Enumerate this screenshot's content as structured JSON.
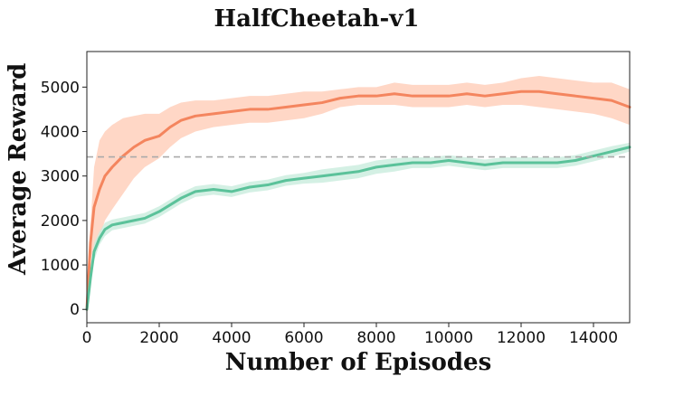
{
  "chart_data": {
    "type": "line",
    "title": "HalfCheetah-v1",
    "xlabel": "Number of Episodes",
    "ylabel": "Average Reward",
    "xlim": [
      0,
      15000
    ],
    "ylim": [
      -300,
      5800
    ],
    "xticks": [
      0,
      2000,
      4000,
      6000,
      8000,
      10000,
      12000,
      14000
    ],
    "yticks": [
      0,
      1000,
      2000,
      3000,
      4000,
      5000
    ],
    "xtick_labels": [
      "0",
      "2000",
      "4000",
      "6000",
      "8000",
      "10000",
      "12000",
      "14000"
    ],
    "ytick_labels": [
      "0",
      "1000",
      "2000",
      "3000",
      "4000",
      "5000"
    ],
    "grid": false,
    "reference_line": {
      "y": 3430,
      "style": "dashed",
      "color": "#aaaaaa"
    },
    "series": [
      {
        "color": "#f4855e",
        "band_color": "#ffcdb8",
        "x": [
          0,
          100,
          200,
          350,
          500,
          700,
          1000,
          1300,
          1600,
          2000,
          2300,
          2600,
          3000,
          3500,
          4000,
          4500,
          5000,
          5500,
          6000,
          6500,
          7000,
          7500,
          8000,
          8500,
          9000,
          9500,
          10000,
          10500,
          11000,
          11500,
          12000,
          12500,
          13000,
          13500,
          14000,
          14500,
          15000
        ],
        "values": [
          0,
          1500,
          2300,
          2700,
          3000,
          3200,
          3450,
          3650,
          3800,
          3900,
          4100,
          4250,
          4350,
          4400,
          4450,
          4500,
          4500,
          4550,
          4600,
          4650,
          4750,
          4800,
          4800,
          4850,
          4800,
          4800,
          4800,
          4850,
          4800,
          4850,
          4900,
          4900,
          4850,
          4800,
          4750,
          4700,
          4550
        ],
        "band": [
          0,
          400,
          900,
          1100,
          1000,
          950,
          850,
          700,
          600,
          500,
          450,
          400,
          350,
          300,
          300,
          300,
          300,
          300,
          300,
          250,
          200,
          200,
          200,
          250,
          250,
          250,
          250,
          250,
          250,
          250,
          300,
          350,
          350,
          350,
          350,
          400,
          400
        ]
      },
      {
        "color": "#5bc29a",
        "band_color": "#c9ecdd",
        "x": [
          0,
          100,
          200,
          350,
          500,
          700,
          1000,
          1300,
          1600,
          2000,
          2300,
          2600,
          3000,
          3500,
          4000,
          4500,
          5000,
          5500,
          6000,
          6500,
          7000,
          7500,
          8000,
          8500,
          9000,
          9500,
          10000,
          10500,
          11000,
          11500,
          12000,
          12500,
          13000,
          13500,
          14000,
          14500,
          15000
        ],
        "values": [
          0,
          700,
          1300,
          1600,
          1800,
          1900,
          1950,
          2000,
          2050,
          2200,
          2350,
          2500,
          2650,
          2700,
          2650,
          2750,
          2800,
          2900,
          2950,
          3000,
          3050,
          3100,
          3200,
          3250,
          3300,
          3300,
          3350,
          3300,
          3250,
          3300,
          3300,
          3300,
          3300,
          3350,
          3450,
          3550,
          3650
        ],
        "band": [
          0,
          150,
          200,
          150,
          150,
          120,
          120,
          120,
          120,
          120,
          120,
          120,
          120,
          120,
          120,
          120,
          120,
          120,
          120,
          150,
          150,
          150,
          150,
          150,
          120,
          120,
          120,
          120,
          120,
          120,
          120,
          120,
          120,
          120,
          120,
          120,
          100
        ]
      }
    ]
  }
}
